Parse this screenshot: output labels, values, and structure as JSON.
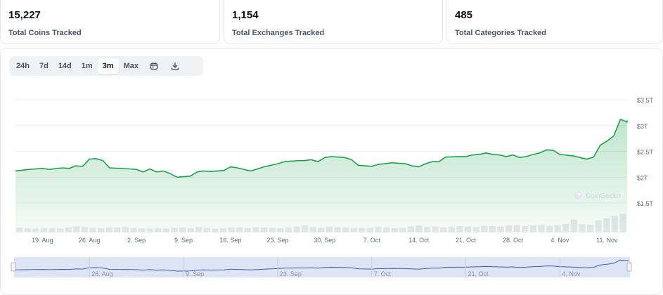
{
  "stats": [
    {
      "value": "15,227",
      "label": "Total Coins Tracked"
    },
    {
      "value": "1,154",
      "label": "Total Exchanges Tracked"
    },
    {
      "value": "485",
      "label": "Total Categories Tracked"
    }
  ],
  "toolbar": {
    "ranges": [
      "24h",
      "7d",
      "14d",
      "1m",
      "3m",
      "Max"
    ],
    "active": "3m",
    "calendar_icon": "calendar-icon",
    "download_icon": "download-icon"
  },
  "watermark": "CoinGecko",
  "colors": {
    "line": "#1ca44b",
    "area": "#cdeed6",
    "volume": "#e8eaed",
    "navigator": "#dde4f3",
    "navigator_line": "#3a5fc6"
  },
  "chart_data": {
    "type": "area",
    "title": "",
    "xlabel": "",
    "ylabel": "",
    "ylim": [
      1.5,
      3.5
    ],
    "y_ticks": [
      {
        "value": 3.5,
        "label": "$3.5T"
      },
      {
        "value": 3.0,
        "label": "$3T"
      },
      {
        "value": 2.5,
        "label": "$2.5T"
      },
      {
        "value": 2.0,
        "label": "$2T"
      },
      {
        "value": 1.5,
        "label": "$1.5T"
      }
    ],
    "x_range": [
      "2024-08-15",
      "2024-11-14"
    ],
    "x_ticks": [
      {
        "date": "2024-08-19",
        "label": "19. Aug"
      },
      {
        "date": "2024-08-26",
        "label": "26. Aug"
      },
      {
        "date": "2024-09-02",
        "label": "2. Sep"
      },
      {
        "date": "2024-09-09",
        "label": "9. Sep"
      },
      {
        "date": "2024-09-16",
        "label": "16. Sep"
      },
      {
        "date": "2024-09-23",
        "label": "23. Sep"
      },
      {
        "date": "2024-09-30",
        "label": "30. Sep"
      },
      {
        "date": "2024-10-07",
        "label": "7. Oct"
      },
      {
        "date": "2024-10-14",
        "label": "14. Oct"
      },
      {
        "date": "2024-10-21",
        "label": "21. Oct"
      },
      {
        "date": "2024-10-28",
        "label": "28. Oct"
      },
      {
        "date": "2024-11-04",
        "label": "4. Nov"
      },
      {
        "date": "2024-11-11",
        "label": "11. Nov"
      }
    ],
    "navigator_ticks": [
      {
        "date": "2024-08-26",
        "label": "26. Aug"
      },
      {
        "date": "2024-09-09",
        "label": "9. Sep"
      },
      {
        "date": "2024-09-23",
        "label": "23. Sep"
      },
      {
        "date": "2024-10-07",
        "label": "7. Oct"
      },
      {
        "date": "2024-10-21",
        "label": "21. Oct"
      },
      {
        "date": "2024-11-04",
        "label": "4. Nov"
      }
    ],
    "series": [
      {
        "values": [
          [
            "2024-08-15",
            2.12
          ],
          [
            "2024-08-17",
            2.15
          ],
          [
            "2024-08-19",
            2.17
          ],
          [
            "2024-08-20",
            2.15
          ],
          [
            "2024-08-22",
            2.18
          ],
          [
            "2024-08-23",
            2.17
          ],
          [
            "2024-08-24",
            2.22
          ],
          [
            "2024-08-25",
            2.21
          ],
          [
            "2024-08-26",
            2.35
          ],
          [
            "2024-08-27",
            2.36
          ],
          [
            "2024-08-28",
            2.32
          ],
          [
            "2024-08-29",
            2.18
          ],
          [
            "2024-09-01",
            2.16
          ],
          [
            "2024-09-02",
            2.15
          ],
          [
            "2024-09-03",
            2.1
          ],
          [
            "2024-09-04",
            2.16
          ],
          [
            "2024-09-05",
            2.1
          ],
          [
            "2024-09-06",
            2.12
          ],
          [
            "2024-09-07",
            2.07
          ],
          [
            "2024-09-08",
            2.0
          ],
          [
            "2024-09-10",
            2.02
          ],
          [
            "2024-09-11",
            2.1
          ],
          [
            "2024-09-12",
            2.12
          ],
          [
            "2024-09-13",
            2.11
          ],
          [
            "2024-09-15",
            2.13
          ],
          [
            "2024-09-16",
            2.2
          ],
          [
            "2024-09-17",
            2.18
          ],
          [
            "2024-09-19",
            2.12
          ],
          [
            "2024-09-21",
            2.2
          ],
          [
            "2024-09-23",
            2.26
          ],
          [
            "2024-09-24",
            2.3
          ],
          [
            "2024-09-26",
            2.32
          ],
          [
            "2024-09-27",
            2.32
          ],
          [
            "2024-09-28",
            2.34
          ],
          [
            "2024-09-29",
            2.3
          ],
          [
            "2024-09-30",
            2.38
          ],
          [
            "2024-10-01",
            2.4
          ],
          [
            "2024-10-03",
            2.38
          ],
          [
            "2024-10-04",
            2.34
          ],
          [
            "2024-10-05",
            2.23
          ],
          [
            "2024-10-07",
            2.21
          ],
          [
            "2024-10-08",
            2.25
          ],
          [
            "2024-10-09",
            2.26
          ],
          [
            "2024-10-10",
            2.28
          ],
          [
            "2024-10-11",
            2.27
          ],
          [
            "2024-10-12",
            2.26
          ],
          [
            "2024-10-13",
            2.22
          ],
          [
            "2024-10-14",
            2.2
          ],
          [
            "2024-10-15",
            2.26
          ],
          [
            "2024-10-16",
            2.3
          ],
          [
            "2024-10-17",
            2.3
          ],
          [
            "2024-10-18",
            2.39
          ],
          [
            "2024-10-20",
            2.4
          ],
          [
            "2024-10-21",
            2.4
          ],
          [
            "2024-10-22",
            2.43
          ],
          [
            "2024-10-23",
            2.44
          ],
          [
            "2024-10-24",
            2.47
          ],
          [
            "2024-10-25",
            2.44
          ],
          [
            "2024-10-26",
            2.43
          ],
          [
            "2024-10-27",
            2.4
          ],
          [
            "2024-10-28",
            2.43
          ],
          [
            "2024-10-29",
            2.38
          ],
          [
            "2024-10-30",
            2.4
          ],
          [
            "2024-10-31",
            2.44
          ],
          [
            "2024-11-01",
            2.47
          ],
          [
            "2024-11-02",
            2.53
          ],
          [
            "2024-11-03",
            2.52
          ],
          [
            "2024-11-04",
            2.44
          ],
          [
            "2024-11-06",
            2.41
          ],
          [
            "2024-11-07",
            2.38
          ],
          [
            "2024-11-08",
            2.35
          ],
          [
            "2024-11-09",
            2.39
          ],
          [
            "2024-11-10",
            2.62
          ],
          [
            "2024-11-11",
            2.7
          ],
          [
            "2024-11-12",
            2.8
          ],
          [
            "2024-11-13",
            3.12
          ],
          [
            "2024-11-14",
            3.07
          ],
          [
            "2024-11-15",
            3.1
          ]
        ]
      }
    ],
    "volume": [
      0.25,
      0.22,
      0.2,
      0.24,
      0.23,
      0.21,
      0.26,
      0.3,
      0.28,
      0.24,
      0.22,
      0.25,
      0.26,
      0.28,
      0.24,
      0.22,
      0.21,
      0.23,
      0.2,
      0.24,
      0.26,
      0.22,
      0.28,
      0.24,
      0.2,
      0.22,
      0.26,
      0.25,
      0.23,
      0.27,
      0.25,
      0.24,
      0.22,
      0.26,
      0.3,
      0.36,
      0.28,
      0.24,
      0.3,
      0.27,
      0.25,
      0.23,
      0.22,
      0.24,
      0.28,
      0.26,
      0.22,
      0.24,
      0.3,
      0.36,
      0.28,
      0.3,
      0.26,
      0.28,
      0.32,
      0.3,
      0.28,
      0.34,
      0.32,
      0.3,
      0.36,
      0.38,
      0.32,
      0.36,
      0.4,
      0.34,
      0.38,
      0.44,
      0.66,
      0.42,
      0.4,
      0.62,
      0.72,
      0.84,
      0.94
    ]
  }
}
